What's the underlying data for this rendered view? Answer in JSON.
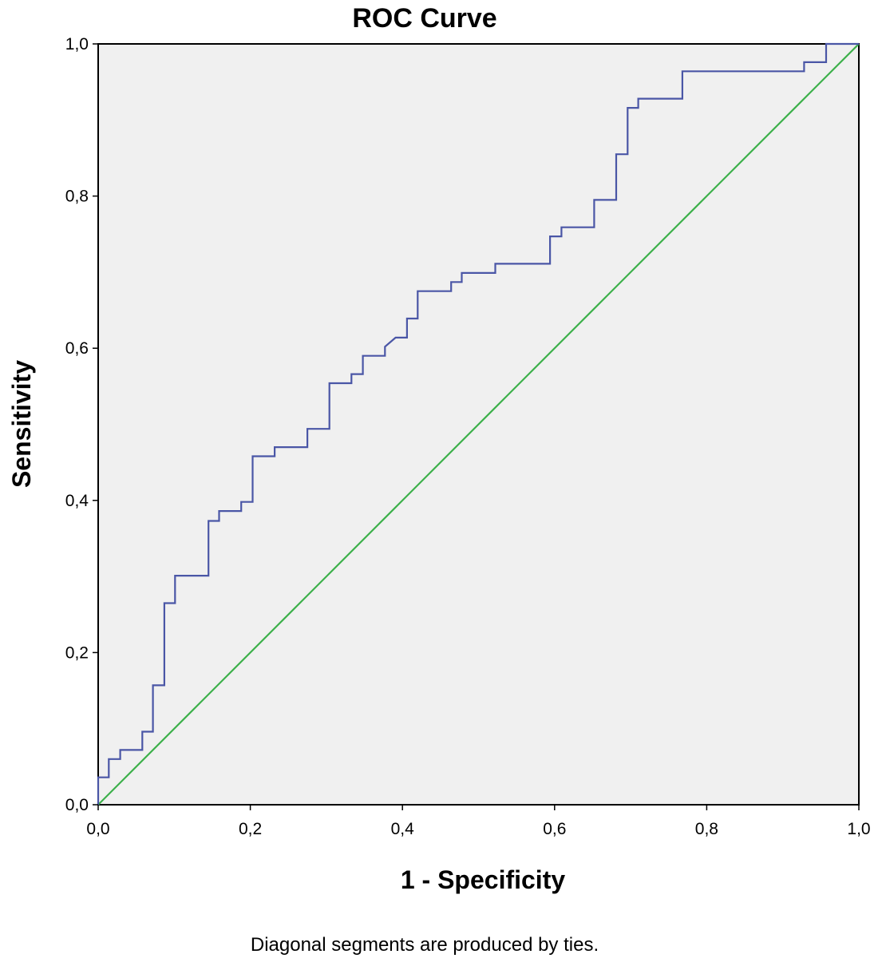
{
  "chart_data": {
    "type": "line",
    "title": "ROC Curve",
    "xlabel": "1 - Specificity",
    "ylabel": "Sensitivity",
    "footnote": "Diagonal segments are produced by ties.",
    "xlim": [
      0,
      1
    ],
    "ylim": [
      0,
      1
    ],
    "x_ticks": [
      0.0,
      0.2,
      0.4,
      0.6,
      0.8,
      1.0
    ],
    "x_tick_labels": [
      "0,0",
      "0,2",
      "0,4",
      "0,6",
      "0,8",
      "1,0"
    ],
    "y_ticks": [
      0.0,
      0.2,
      0.4,
      0.6,
      0.8,
      1.0
    ],
    "y_tick_labels": [
      "0,0",
      "0,2",
      "0,4",
      "0,6",
      "0,8",
      "1,0"
    ],
    "background": "#f0f0f0",
    "series": [
      {
        "name": "ROC curve",
        "color": "#4a56a6",
        "x": [
          0.0,
          0.0,
          0.014,
          0.014,
          0.029,
          0.029,
          0.058,
          0.058,
          0.072,
          0.072,
          0.087,
          0.087,
          0.101,
          0.101,
          0.145,
          0.145,
          0.159,
          0.159,
          0.188,
          0.188,
          0.203,
          0.203,
          0.232,
          0.232,
          0.275,
          0.275,
          0.304,
          0.304,
          0.333,
          0.333,
          0.348,
          0.348,
          0.377,
          0.377,
          0.391,
          0.406,
          0.406,
          0.42,
          0.42,
          0.464,
          0.464,
          0.478,
          0.478,
          0.522,
          0.522,
          0.594,
          0.594,
          0.609,
          0.609,
          0.652,
          0.652,
          0.681,
          0.681,
          0.696,
          0.696,
          0.71,
          0.71,
          0.768,
          0.768,
          0.928,
          0.928,
          0.957,
          0.957,
          0.986,
          0.986,
          1.0
        ],
        "y": [
          0.0,
          0.036,
          0.036,
          0.06,
          0.06,
          0.072,
          0.072,
          0.096,
          0.096,
          0.157,
          0.157,
          0.265,
          0.265,
          0.301,
          0.301,
          0.373,
          0.373,
          0.386,
          0.386,
          0.398,
          0.398,
          0.458,
          0.458,
          0.47,
          0.47,
          0.494,
          0.494,
          0.554,
          0.554,
          0.566,
          0.566,
          0.59,
          0.59,
          0.602,
          0.614,
          0.614,
          0.639,
          0.639,
          0.675,
          0.675,
          0.687,
          0.687,
          0.699,
          0.699,
          0.711,
          0.711,
          0.747,
          0.747,
          0.759,
          0.759,
          0.795,
          0.795,
          0.855,
          0.855,
          0.916,
          0.916,
          0.928,
          0.928,
          0.964,
          0.964,
          0.976,
          0.976,
          1.0,
          1.0,
          1.0,
          1.0
        ]
      },
      {
        "name": "Reference line",
        "color": "#3cb04a",
        "x": [
          0.0,
          1.0
        ],
        "y": [
          0.0,
          1.0
        ]
      }
    ]
  }
}
